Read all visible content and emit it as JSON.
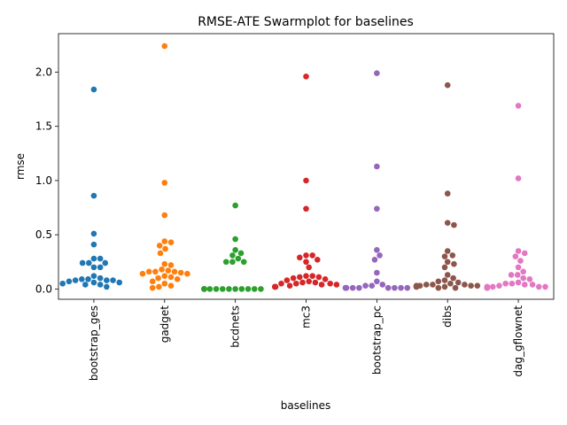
{
  "chart_data": {
    "type": "scatter",
    "subtype": "swarmplot",
    "title": "RMSE-ATE Swarmplot for baselines",
    "xlabel": "baselines",
    "ylabel": "rmse",
    "ylim": [
      -0.095,
      2.355
    ],
    "yticks": [
      "0.0",
      "0.5",
      "1.0",
      "1.5",
      "2.0"
    ],
    "ytick_values": [
      0.0,
      0.5,
      1.0,
      1.5,
      2.0
    ],
    "grid": false,
    "legend": "none",
    "categories": [
      "bootstrap_ges",
      "gadget",
      "bcdnets",
      "mc3",
      "bootstrap_pc",
      "dibs",
      "dag_gflownet"
    ],
    "series": [
      {
        "color": "#1f77b4",
        "values": [
          1.84,
          0.86,
          0.51,
          0.41,
          0.28,
          0.28,
          0.24,
          0.24,
          0.24,
          0.2,
          0.2,
          0.12,
          0.1,
          0.09,
          0.09,
          0.08,
          0.08,
          0.08,
          0.07,
          0.06,
          0.06,
          0.05,
          0.04,
          0.04,
          0.02
        ]
      },
      {
        "color": "#ff7f0e",
        "values": [
          2.24,
          0.98,
          0.68,
          0.44,
          0.43,
          0.4,
          0.37,
          0.33,
          0.23,
          0.22,
          0.18,
          0.17,
          0.16,
          0.16,
          0.16,
          0.15,
          0.14,
          0.14,
          0.12,
          0.11,
          0.1,
          0.09,
          0.07,
          0.05,
          0.03,
          0.02,
          0.01
        ]
      },
      {
        "color": "#2ca02c",
        "values": [
          0.77,
          0.46,
          0.36,
          0.33,
          0.31,
          0.28,
          0.25,
          0.25,
          0.25,
          0.0,
          0.0,
          0.0,
          0.0,
          0.0,
          0.0,
          0.0,
          0.0,
          0.0,
          0.0,
          0.0,
          0.0,
          0.0,
          0.0
        ]
      },
      {
        "color": "#d62728",
        "values": [
          1.96,
          1.0,
          0.74,
          0.31,
          0.31,
          0.29,
          0.27,
          0.25,
          0.2,
          0.12,
          0.12,
          0.11,
          0.11,
          0.1,
          0.09,
          0.08,
          0.07,
          0.06,
          0.06,
          0.05,
          0.05,
          0.05,
          0.04,
          0.04,
          0.03,
          0.02,
          0.02,
          0.02,
          0.02
        ]
      },
      {
        "color": "#9467bd",
        "values": [
          1.99,
          1.13,
          0.74,
          0.36,
          0.31,
          0.27,
          0.15,
          0.07,
          0.04,
          0.03,
          0.03,
          0.01,
          0.01,
          0.01,
          0.01,
          0.01,
          0.01,
          0.01,
          0.01,
          0.01,
          0.01,
          0.01,
          0.01,
          0.01
        ]
      },
      {
        "color": "#8c564b",
        "values": [
          1.88,
          0.88,
          0.61,
          0.59,
          0.35,
          0.31,
          0.3,
          0.25,
          0.23,
          0.2,
          0.13,
          0.1,
          0.08,
          0.07,
          0.06,
          0.05,
          0.04,
          0.04,
          0.04,
          0.03,
          0.03,
          0.03,
          0.03,
          0.02,
          0.02,
          0.02,
          0.01,
          0.01
        ]
      },
      {
        "color": "#e377c2",
        "values": [
          1.69,
          1.02,
          0.35,
          0.33,
          0.3,
          0.26,
          0.2,
          0.16,
          0.13,
          0.13,
          0.1,
          0.09,
          0.06,
          0.05,
          0.05,
          0.04,
          0.04,
          0.03,
          0.02,
          0.02,
          0.02,
          0.02,
          0.02,
          0.01,
          0.01,
          0.01,
          0.01
        ]
      }
    ]
  }
}
